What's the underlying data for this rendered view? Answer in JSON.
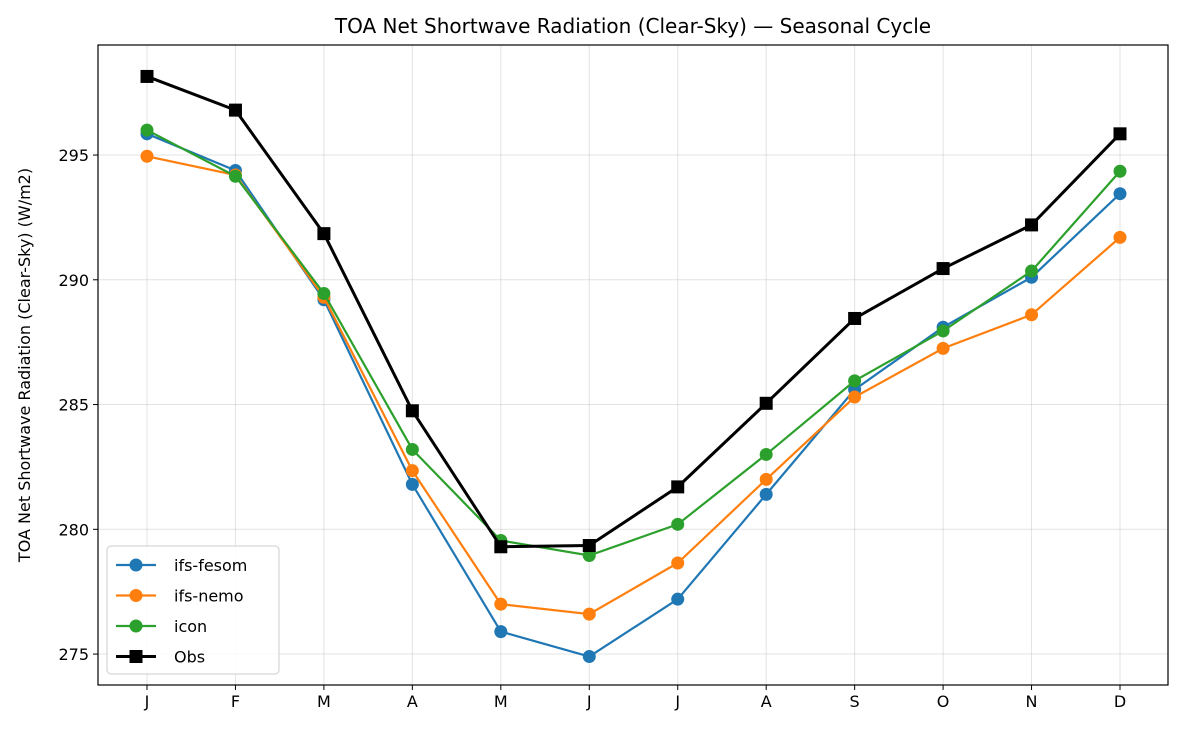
{
  "chart_data": {
    "type": "line",
    "title": "TOA Net Shortwave Radiation (Clear-Sky) — Seasonal Cycle",
    "xlabel": "",
    "ylabel": "TOA Net Shortwave Radiation (Clear-Sky) (W/m2)",
    "categories": [
      "J",
      "F",
      "M",
      "A",
      "M",
      "J",
      "J",
      "A",
      "S",
      "O",
      "N",
      "D"
    ],
    "yticks": [
      275,
      280,
      285,
      290,
      295
    ],
    "ylim": [
      273.76,
      299.41
    ],
    "grid": true,
    "legend_position": "lower-left",
    "series": [
      {
        "name": "ifs-fesom",
        "color": "#1f77b4",
        "marker": "circle",
        "values": [
          295.85,
          294.38,
          289.2,
          281.8,
          275.9,
          274.9,
          277.2,
          281.4,
          285.6,
          288.1,
          290.1,
          293.45
        ]
      },
      {
        "name": "ifs-nemo",
        "color": "#ff7f0e",
        "marker": "circle",
        "values": [
          294.95,
          294.2,
          289.3,
          282.35,
          277.0,
          276.6,
          278.65,
          282.0,
          285.3,
          287.25,
          288.6,
          291.7
        ]
      },
      {
        "name": "icon",
        "color": "#2ca02c",
        "marker": "circle",
        "values": [
          296.0,
          294.15,
          289.45,
          283.2,
          279.55,
          278.95,
          280.2,
          283.0,
          285.95,
          287.95,
          290.35,
          294.35
        ]
      },
      {
        "name": "Obs",
        "color": "#000000",
        "marker": "square",
        "values": [
          298.15,
          296.8,
          291.85,
          284.75,
          279.3,
          279.35,
          281.7,
          285.05,
          288.45,
          290.45,
          292.2,
          295.85
        ]
      }
    ]
  }
}
